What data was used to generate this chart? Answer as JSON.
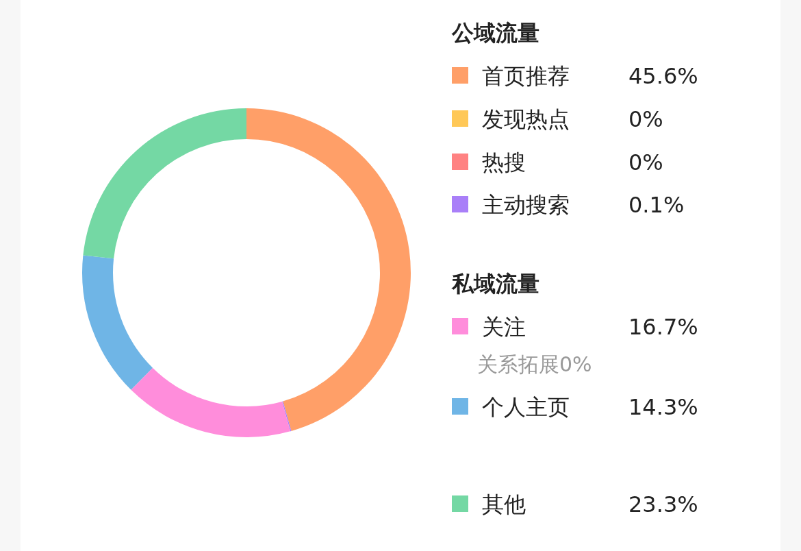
{
  "chart_data": {
    "type": "donut",
    "categories": [
      "首页推荐",
      "发现热点",
      "热搜",
      "主动搜索",
      "关注",
      "个人主页",
      "其他"
    ],
    "values": [
      45.6,
      0,
      0,
      0.1,
      16.7,
      14.3,
      23.3
    ],
    "colors": [
      "#ff9f68",
      "#ffc857",
      "#ff8282",
      "#a97ff8",
      "#ff8ddb",
      "#6fb5e6",
      "#74d8a4"
    ],
    "value_labels": [
      "45.6%",
      "0%",
      "0%",
      "0.1%",
      "16.7%",
      "14.3%",
      "23.3%"
    ],
    "annotations": [
      "公域流量",
      "私域流量",
      "关系拓展0%"
    ],
    "legend": "right"
  }
}
